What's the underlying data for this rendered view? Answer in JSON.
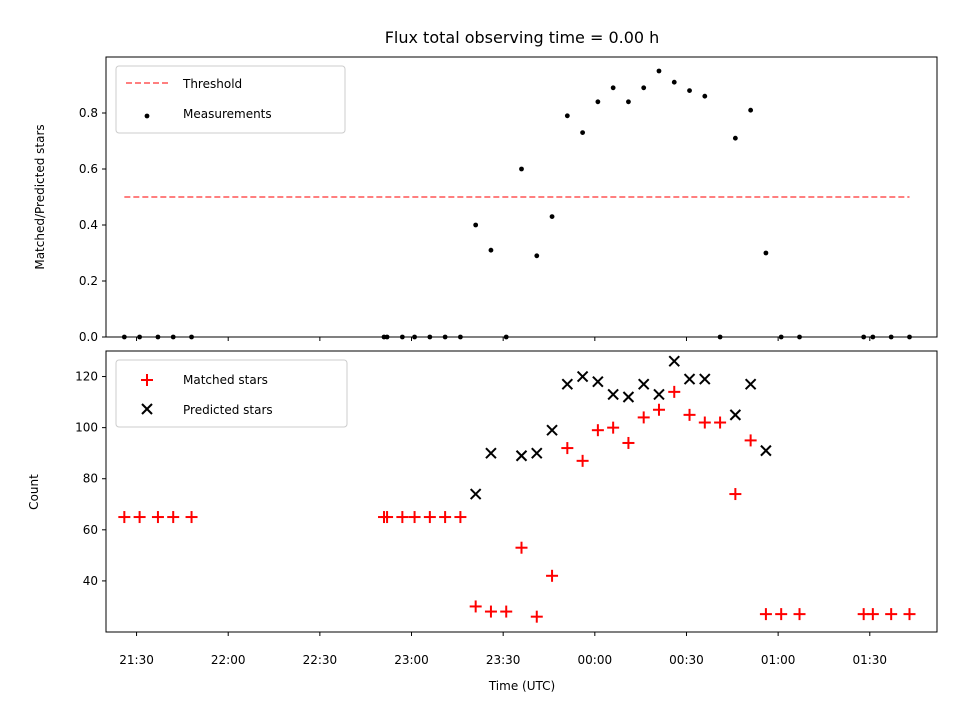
{
  "chart_data": {
    "title": "Flux total observing time = 0.00 h",
    "xlabel": "Time (UTC)",
    "xlim": [
      "21:20",
      "01:52"
    ],
    "x_ticks": [
      "21:30",
      "22:00",
      "22:30",
      "23:00",
      "23:30",
      "00:00",
      "00:30",
      "01:00",
      "01:30"
    ],
    "panels": [
      {
        "type": "scatter",
        "ylabel": "Matched/Predicted stars",
        "ylim": [
          0,
          1.0
        ],
        "y_ticks": [
          0.0,
          0.2,
          0.4,
          0.6,
          0.8
        ],
        "y_tick_labels": [
          "0.0",
          "0.2",
          "0.4",
          "0.6",
          "0.8"
        ],
        "legend_position": "top-left",
        "threshold": {
          "name": "Threshold",
          "value": 0.5,
          "x_start": "21:26",
          "x_end": "01:43",
          "color": "#ff7f7f"
        },
        "series": [
          {
            "name": "Measurements",
            "marker": "dot",
            "color": "#000000",
            "points": [
              [
                "21:26",
                0.0
              ],
              [
                "21:31",
                0.0
              ],
              [
                "21:37",
                0.0
              ],
              [
                "21:42",
                0.0
              ],
              [
                "21:48",
                0.0
              ],
              [
                "22:51",
                0.0
              ],
              [
                "22:52",
                0.0
              ],
              [
                "22:57",
                0.0
              ],
              [
                "23:01",
                0.0
              ],
              [
                "23:06",
                0.0
              ],
              [
                "23:11",
                0.0
              ],
              [
                "23:16",
                0.0
              ],
              [
                "23:21",
                0.4
              ],
              [
                "23:26",
                0.31
              ],
              [
                "23:31",
                0.0
              ],
              [
                "23:36",
                0.6
              ],
              [
                "23:41",
                0.29
              ],
              [
                "23:46",
                0.43
              ],
              [
                "23:51",
                0.79
              ],
              [
                "23:56",
                0.73
              ],
              [
                "00:01",
                0.84
              ],
              [
                "00:06",
                0.89
              ],
              [
                "00:11",
                0.84
              ],
              [
                "00:16",
                0.89
              ],
              [
                "00:21",
                0.95
              ],
              [
                "00:26",
                0.91
              ],
              [
                "00:31",
                0.88
              ],
              [
                "00:36",
                0.86
              ],
              [
                "00:41",
                0.0
              ],
              [
                "00:46",
                0.71
              ],
              [
                "00:51",
                0.81
              ],
              [
                "00:56",
                0.3
              ],
              [
                "01:01",
                0.0
              ],
              [
                "01:07",
                0.0
              ],
              [
                "01:28",
                0.0
              ],
              [
                "01:31",
                0.0
              ],
              [
                "01:37",
                0.0
              ],
              [
                "01:43",
                0.0
              ]
            ]
          }
        ]
      },
      {
        "type": "scatter",
        "ylabel": "Count",
        "ylim": [
          20,
          130
        ],
        "y_ticks": [
          40,
          60,
          80,
          100,
          120
        ],
        "y_tick_labels": [
          "40",
          "60",
          "80",
          "100",
          "120"
        ],
        "legend_position": "top-left",
        "series": [
          {
            "name": "Matched stars",
            "marker": "plus",
            "color": "#ff0000",
            "points": [
              [
                "21:26",
                65
              ],
              [
                "21:31",
                65
              ],
              [
                "21:37",
                65
              ],
              [
                "21:42",
                65
              ],
              [
                "21:48",
                65
              ],
              [
                "22:51",
                65
              ],
              [
                "22:52",
                65
              ],
              [
                "22:57",
                65
              ],
              [
                "23:01",
                65
              ],
              [
                "23:06",
                65
              ],
              [
                "23:11",
                65
              ],
              [
                "23:16",
                65
              ],
              [
                "23:21",
                30
              ],
              [
                "23:26",
                28
              ],
              [
                "23:31",
                28
              ],
              [
                "23:36",
                53
              ],
              [
                "23:41",
                26
              ],
              [
                "23:46",
                42
              ],
              [
                "23:51",
                92
              ],
              [
                "23:56",
                87
              ],
              [
                "00:01",
                99
              ],
              [
                "00:06",
                100
              ],
              [
                "00:11",
                94
              ],
              [
                "00:16",
                104
              ],
              [
                "00:21",
                107
              ],
              [
                "00:26",
                114
              ],
              [
                "00:31",
                105
              ],
              [
                "00:36",
                102
              ],
              [
                "00:41",
                102
              ],
              [
                "00:46",
                74
              ],
              [
                "00:51",
                95
              ],
              [
                "00:56",
                27
              ],
              [
                "01:01",
                27
              ],
              [
                "01:07",
                27
              ],
              [
                "01:28",
                27
              ],
              [
                "01:31",
                27
              ],
              [
                "01:37",
                27
              ],
              [
                "01:43",
                27
              ]
            ]
          },
          {
            "name": "Predicted stars",
            "marker": "x",
            "color": "#000000",
            "points": [
              [
                "23:21",
                74
              ],
              [
                "23:26",
                90
              ],
              [
                "23:36",
                89
              ],
              [
                "23:41",
                90
              ],
              [
                "23:46",
                99
              ],
              [
                "23:51",
                117
              ],
              [
                "23:56",
                120
              ],
              [
                "00:01",
                118
              ],
              [
                "00:06",
                113
              ],
              [
                "00:11",
                112
              ],
              [
                "00:16",
                117
              ],
              [
                "00:21",
                113
              ],
              [
                "00:26",
                126
              ],
              [
                "00:31",
                119
              ],
              [
                "00:36",
                119
              ],
              [
                "00:46",
                105
              ],
              [
                "00:51",
                117
              ],
              [
                "00:56",
                91
              ]
            ]
          }
        ]
      }
    ]
  }
}
